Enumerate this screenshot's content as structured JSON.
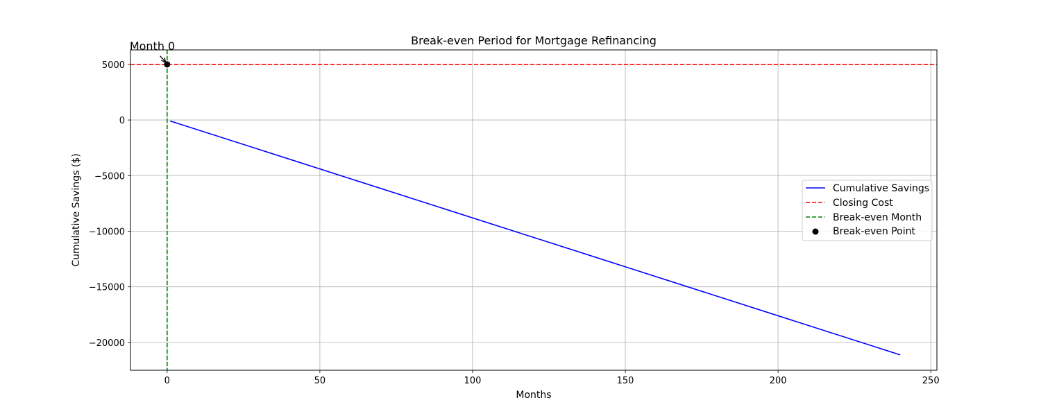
{
  "chart_data": {
    "type": "line",
    "title": "Break-even Period for Mortgage Refinancing",
    "xlabel": "Months",
    "ylabel": "Cumulative Savings ($)",
    "xlim": [
      -12,
      252
    ],
    "ylim": [
      -22500,
      6300
    ],
    "xticks": [
      0,
      50,
      100,
      150,
      200,
      250
    ],
    "yticks": [
      5000,
      0,
      -5000,
      -10000,
      -15000,
      -20000
    ],
    "xtick_labels": [
      "0",
      "50",
      "100",
      "150",
      "200",
      "250"
    ],
    "ytick_labels": [
      "5000",
      "0",
      "−5000",
      "−10000",
      "−15000",
      "−20000"
    ],
    "grid": true,
    "series": [
      {
        "name": "Cumulative Savings",
        "style": "solid",
        "color": "#0000ff",
        "x": [
          1,
          240
        ],
        "y": [
          -88,
          -21120
        ]
      }
    ],
    "reference_lines": {
      "closing_cost": {
        "name": "Closing Cost",
        "orientation": "horizontal",
        "value": 5000,
        "style": "dashed",
        "color": "#ff0000"
      },
      "break_even_month": {
        "name": "Break-even Month",
        "orientation": "vertical",
        "value": 0,
        "style": "dashed",
        "color": "#008000"
      }
    },
    "points": [
      {
        "name": "Break-even Point",
        "x": 0,
        "y": 5000,
        "color": "#000000"
      }
    ],
    "annotation": {
      "text": "Month 0",
      "x": 0,
      "y": 5000
    },
    "legend_position": "center-right"
  }
}
